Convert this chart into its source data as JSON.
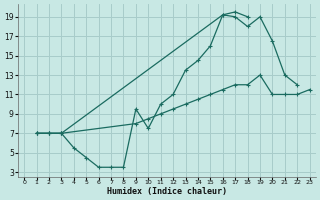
{
  "xlabel": "Humidex (Indice chaleur)",
  "background_color": "#c8e8e4",
  "grid_color": "#a8ccca",
  "line_color": "#1a6b60",
  "xlim": [
    -0.5,
    23.5
  ],
  "ylim": [
    2.5,
    20.3
  ],
  "xticks": [
    0,
    1,
    2,
    3,
    4,
    5,
    6,
    7,
    8,
    9,
    10,
    11,
    12,
    13,
    14,
    15,
    16,
    17,
    18,
    19,
    20,
    21,
    22,
    23
  ],
  "yticks": [
    3,
    5,
    7,
    9,
    11,
    13,
    15,
    17,
    19
  ],
  "line1_x": [
    1,
    2,
    3,
    4,
    5,
    6,
    7,
    8,
    9,
    10,
    11,
    12,
    13,
    14,
    15,
    16,
    17,
    18
  ],
  "line1_y": [
    7,
    7,
    7,
    5.5,
    4.5,
    3.5,
    3.5,
    3.5,
    9.5,
    7.5,
    10,
    11,
    13.5,
    14.5,
    16,
    19.2,
    19.5,
    19
  ],
  "line2_x": [
    1,
    2,
    3,
    16,
    17,
    18,
    19,
    20,
    21,
    22
  ],
  "line2_y": [
    7,
    7,
    7,
    19.2,
    19,
    18,
    19,
    16.5,
    13,
    12
  ],
  "line3_x": [
    1,
    2,
    3,
    9,
    10,
    11,
    12,
    13,
    14,
    15,
    16,
    17,
    18,
    19,
    20,
    21,
    22,
    23
  ],
  "line3_y": [
    7,
    7,
    7,
    8,
    8.5,
    9,
    9.5,
    10,
    10.5,
    11,
    11.5,
    12,
    12,
    13,
    11,
    11,
    11,
    11.5
  ]
}
